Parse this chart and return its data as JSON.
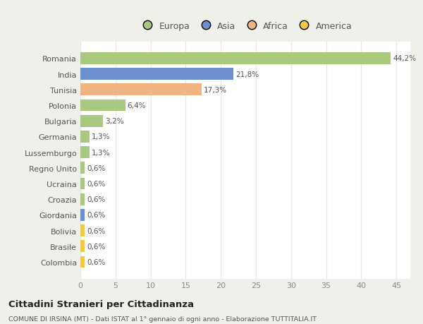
{
  "categories": [
    "Colombia",
    "Brasile",
    "Bolivia",
    "Giordania",
    "Croazia",
    "Ucraina",
    "Regno Unito",
    "Lussemburgo",
    "Germania",
    "Bulgaria",
    "Polonia",
    "Tunisia",
    "India",
    "Romania"
  ],
  "values": [
    0.6,
    0.6,
    0.6,
    0.6,
    0.6,
    0.6,
    0.6,
    1.3,
    1.3,
    3.2,
    6.4,
    17.3,
    21.8,
    44.2
  ],
  "colors": [
    "#f5c842",
    "#f5c842",
    "#f5c842",
    "#6b8fcf",
    "#a8c97f",
    "#a8c97f",
    "#a8c97f",
    "#a8c97f",
    "#a8c97f",
    "#a8c97f",
    "#a8c97f",
    "#f0b482",
    "#6b8fcf",
    "#a8c97f"
  ],
  "labels": [
    "0,6%",
    "0,6%",
    "0,6%",
    "0,6%",
    "0,6%",
    "0,6%",
    "0,6%",
    "1,3%",
    "1,3%",
    "3,2%",
    "6,4%",
    "17,3%",
    "21,8%",
    "44,2%"
  ],
  "legend_labels": [
    "Europa",
    "Asia",
    "Africa",
    "America"
  ],
  "legend_colors": [
    "#a8c97f",
    "#6b8fcf",
    "#f0b482",
    "#f5c842"
  ],
  "xlabel_ticks": [
    0,
    5,
    10,
    15,
    20,
    25,
    30,
    35,
    40,
    45
  ],
  "xlim": [
    0,
    47
  ],
  "title": "Cittadini Stranieri per Cittadinanza",
  "subtitle": "COMUNE DI IRSINA (MT) - Dati ISTAT al 1° gennaio di ogni anno - Elaborazione TUTTITALIA.IT",
  "background_color": "#f0f0eb",
  "plot_bg_color": "#ffffff",
  "grid_color": "#e8e8e8",
  "bar_height": 0.75,
  "label_color": "#555555",
  "tick_color": "#888888"
}
